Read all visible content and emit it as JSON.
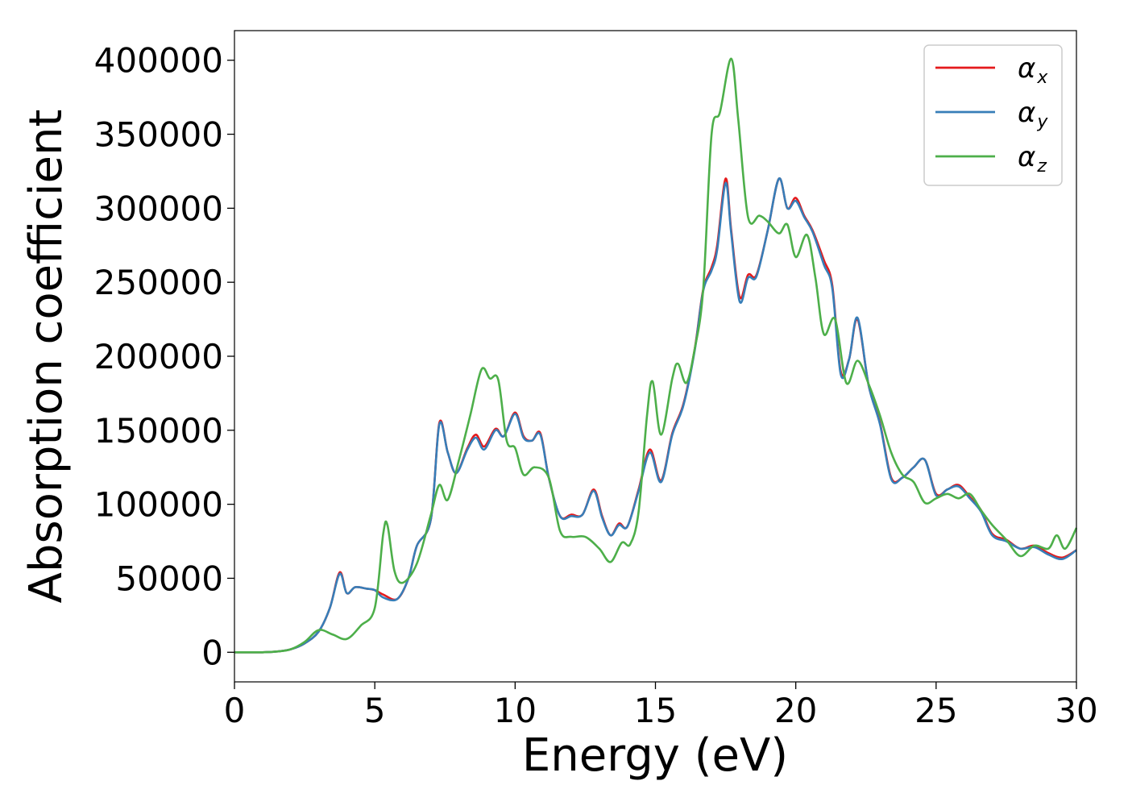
{
  "chart_data": {
    "type": "line",
    "title": "",
    "xlabel": "Energy (eV)",
    "ylabel": "Absorption coefficient",
    "xlim": [
      0,
      30
    ],
    "ylim": [
      -20000,
      420000
    ],
    "xticks": [
      0,
      5,
      10,
      15,
      20,
      25,
      30
    ],
    "yticks": [
      0,
      50000,
      100000,
      150000,
      200000,
      250000,
      300000,
      350000,
      400000
    ],
    "xtick_labels": [
      "0",
      "5",
      "10",
      "15",
      "20",
      "25",
      "30"
    ],
    "ytick_labels": [
      "0",
      "50000",
      "100000",
      "150000",
      "200000",
      "250000",
      "300000",
      "350000",
      "400000"
    ],
    "grid": false,
    "legend_position": "top-right",
    "series": [
      {
        "name": "αx",
        "symbol": "α",
        "subscript": "x",
        "color": "#e41a1c",
        "points": [
          [
            0,
            0
          ],
          [
            1,
            0
          ],
          [
            1.5,
            500
          ],
          [
            2,
            2000
          ],
          [
            2.5,
            6000
          ],
          [
            3,
            14000
          ],
          [
            3.4,
            30000
          ],
          [
            3.75,
            54000
          ],
          [
            4,
            40000
          ],
          [
            4.3,
            44000
          ],
          [
            4.7,
            43000
          ],
          [
            5,
            42000
          ],
          [
            5.3,
            39000
          ],
          [
            5.8,
            36000
          ],
          [
            6.2,
            50000
          ],
          [
            6.5,
            72000
          ],
          [
            7,
            90000
          ],
          [
            7.3,
            155000
          ],
          [
            7.6,
            135000
          ],
          [
            7.9,
            121000
          ],
          [
            8.3,
            138000
          ],
          [
            8.6,
            147000
          ],
          [
            8.9,
            139000
          ],
          [
            9.3,
            151000
          ],
          [
            9.6,
            146000
          ],
          [
            10,
            162000
          ],
          [
            10.3,
            146000
          ],
          [
            10.6,
            143000
          ],
          [
            10.9,
            148000
          ],
          [
            11.2,
            118000
          ],
          [
            11.6,
            92000
          ],
          [
            12,
            93000
          ],
          [
            12.4,
            93000
          ],
          [
            12.8,
            110000
          ],
          [
            13.1,
            92000
          ],
          [
            13.4,
            79000
          ],
          [
            13.7,
            87000
          ],
          [
            14,
            85000
          ],
          [
            14.4,
            110000
          ],
          [
            14.8,
            137000
          ],
          [
            15.2,
            116000
          ],
          [
            15.6,
            148000
          ],
          [
            16,
            168000
          ],
          [
            16.4,
            205000
          ],
          [
            16.7,
            245000
          ],
          [
            17,
            260000
          ],
          [
            17.2,
            275000
          ],
          [
            17.5,
            320000
          ],
          [
            17.7,
            285000
          ],
          [
            18,
            240000
          ],
          [
            18.3,
            255000
          ],
          [
            18.6,
            255000
          ],
          [
            19,
            285000
          ],
          [
            19.4,
            320000
          ],
          [
            19.7,
            300000
          ],
          [
            20,
            307000
          ],
          [
            20.3,
            295000
          ],
          [
            20.6,
            285000
          ],
          [
            21,
            265000
          ],
          [
            21.3,
            248000
          ],
          [
            21.6,
            190000
          ],
          [
            21.9,
            198000
          ],
          [
            22.2,
            225000
          ],
          [
            22.6,
            180000
          ],
          [
            23,
            155000
          ],
          [
            23.4,
            118000
          ],
          [
            23.8,
            118000
          ],
          [
            24.2,
            125000
          ],
          [
            24.6,
            130000
          ],
          [
            25,
            107000
          ],
          [
            25.4,
            110000
          ],
          [
            25.8,
            113000
          ],
          [
            26.2,
            105000
          ],
          [
            26.6,
            96000
          ],
          [
            27,
            80000
          ],
          [
            27.5,
            76000
          ],
          [
            28,
            70000
          ],
          [
            28.5,
            72000
          ],
          [
            29,
            67000
          ],
          [
            29.5,
            64000
          ],
          [
            30,
            69000
          ]
        ]
      },
      {
        "name": "αy",
        "symbol": "α",
        "subscript": "y",
        "color": "#377eb8",
        "points": [
          [
            0,
            0
          ],
          [
            1,
            0
          ],
          [
            1.5,
            500
          ],
          [
            2,
            2000
          ],
          [
            2.5,
            6000
          ],
          [
            3,
            14000
          ],
          [
            3.4,
            30000
          ],
          [
            3.75,
            53000
          ],
          [
            4,
            40000
          ],
          [
            4.3,
            44000
          ],
          [
            4.7,
            43000
          ],
          [
            5,
            42000
          ],
          [
            5.3,
            37000
          ],
          [
            5.8,
            36000
          ],
          [
            6.2,
            50000
          ],
          [
            6.5,
            72000
          ],
          [
            7,
            90000
          ],
          [
            7.3,
            154000
          ],
          [
            7.6,
            135000
          ],
          [
            7.9,
            121000
          ],
          [
            8.3,
            137000
          ],
          [
            8.6,
            145000
          ],
          [
            8.9,
            137000
          ],
          [
            9.3,
            150000
          ],
          [
            9.6,
            146000
          ],
          [
            10,
            161000
          ],
          [
            10.3,
            145000
          ],
          [
            10.6,
            143000
          ],
          [
            10.9,
            147000
          ],
          [
            11.2,
            118000
          ],
          [
            11.6,
            92000
          ],
          [
            12,
            92000
          ],
          [
            12.4,
            93000
          ],
          [
            12.8,
            109000
          ],
          [
            13.1,
            91000
          ],
          [
            13.4,
            79000
          ],
          [
            13.7,
            86000
          ],
          [
            14,
            85000
          ],
          [
            14.4,
            109000
          ],
          [
            14.8,
            135000
          ],
          [
            15.2,
            115000
          ],
          [
            15.6,
            147000
          ],
          [
            16,
            167000
          ],
          [
            16.4,
            204000
          ],
          [
            16.7,
            244000
          ],
          [
            17,
            258000
          ],
          [
            17.2,
            272000
          ],
          [
            17.5,
            317000
          ],
          [
            17.7,
            283000
          ],
          [
            18,
            237000
          ],
          [
            18.3,
            253000
          ],
          [
            18.6,
            254000
          ],
          [
            19,
            285000
          ],
          [
            19.4,
            320000
          ],
          [
            19.7,
            300000
          ],
          [
            20,
            305000
          ],
          [
            20.3,
            294000
          ],
          [
            20.6,
            284000
          ],
          [
            21,
            262000
          ],
          [
            21.3,
            246000
          ],
          [
            21.6,
            188000
          ],
          [
            21.9,
            198000
          ],
          [
            22.2,
            226000
          ],
          [
            22.6,
            180000
          ],
          [
            23,
            154000
          ],
          [
            23.4,
            117000
          ],
          [
            23.8,
            118000
          ],
          [
            24.2,
            125000
          ],
          [
            24.6,
            130000
          ],
          [
            25,
            106000
          ],
          [
            25.4,
            110000
          ],
          [
            25.8,
            112000
          ],
          [
            26.2,
            104000
          ],
          [
            26.6,
            95000
          ],
          [
            27,
            79000
          ],
          [
            27.5,
            75000
          ],
          [
            28,
            70000
          ],
          [
            28.5,
            71000
          ],
          [
            29,
            66000
          ],
          [
            29.5,
            63000
          ],
          [
            30,
            69000
          ]
        ]
      },
      {
        "name": "αz",
        "symbol": "α",
        "subscript": "z",
        "color": "#4daf4a",
        "points": [
          [
            0,
            0
          ],
          [
            1,
            0
          ],
          [
            1.5,
            500
          ],
          [
            2,
            2000
          ],
          [
            2.5,
            7000
          ],
          [
            3,
            15000
          ],
          [
            3.5,
            12000
          ],
          [
            4,
            9000
          ],
          [
            4.5,
            18000
          ],
          [
            5,
            30000
          ],
          [
            5.3,
            80000
          ],
          [
            5.45,
            86000
          ],
          [
            5.7,
            55000
          ],
          [
            6,
            47000
          ],
          [
            6.5,
            60000
          ],
          [
            7,
            93000
          ],
          [
            7.3,
            113000
          ],
          [
            7.6,
            103000
          ],
          [
            8,
            130000
          ],
          [
            8.4,
            160000
          ],
          [
            8.8,
            191000
          ],
          [
            9.1,
            185000
          ],
          [
            9.4,
            184000
          ],
          [
            9.7,
            143000
          ],
          [
            10,
            138000
          ],
          [
            10.3,
            120000
          ],
          [
            10.7,
            125000
          ],
          [
            11.2,
            118000
          ],
          [
            11.6,
            82000
          ],
          [
            12,
            78000
          ],
          [
            12.5,
            78000
          ],
          [
            13,
            70000
          ],
          [
            13.4,
            61000
          ],
          [
            13.8,
            74000
          ],
          [
            14.1,
            73000
          ],
          [
            14.4,
            95000
          ],
          [
            14.7,
            160000
          ],
          [
            14.9,
            183000
          ],
          [
            15.2,
            147000
          ],
          [
            15.6,
            185000
          ],
          [
            15.8,
            195000
          ],
          [
            16.1,
            182000
          ],
          [
            16.4,
            205000
          ],
          [
            16.7,
            245000
          ],
          [
            17,
            350000
          ],
          [
            17.3,
            365000
          ],
          [
            17.7,
            401000
          ],
          [
            17.95,
            360000
          ],
          [
            18.3,
            294000
          ],
          [
            18.7,
            295000
          ],
          [
            19,
            291000
          ],
          [
            19.4,
            283000
          ],
          [
            19.7,
            289000
          ],
          [
            20,
            267000
          ],
          [
            20.4,
            282000
          ],
          [
            20.7,
            253000
          ],
          [
            21,
            215000
          ],
          [
            21.4,
            225000
          ],
          [
            21.8,
            182000
          ],
          [
            22.2,
            197000
          ],
          [
            22.6,
            181000
          ],
          [
            23,
            160000
          ],
          [
            23.4,
            135000
          ],
          [
            23.8,
            120000
          ],
          [
            24.2,
            115000
          ],
          [
            24.6,
            101000
          ],
          [
            25,
            104000
          ],
          [
            25.4,
            107000
          ],
          [
            25.8,
            104000
          ],
          [
            26.2,
            107000
          ],
          [
            26.6,
            96000
          ],
          [
            27,
            86000
          ],
          [
            27.5,
            76000
          ],
          [
            28,
            65000
          ],
          [
            28.5,
            72000
          ],
          [
            29,
            70000
          ],
          [
            29.3,
            79000
          ],
          [
            29.6,
            70000
          ],
          [
            30,
            84000
          ]
        ]
      }
    ]
  }
}
